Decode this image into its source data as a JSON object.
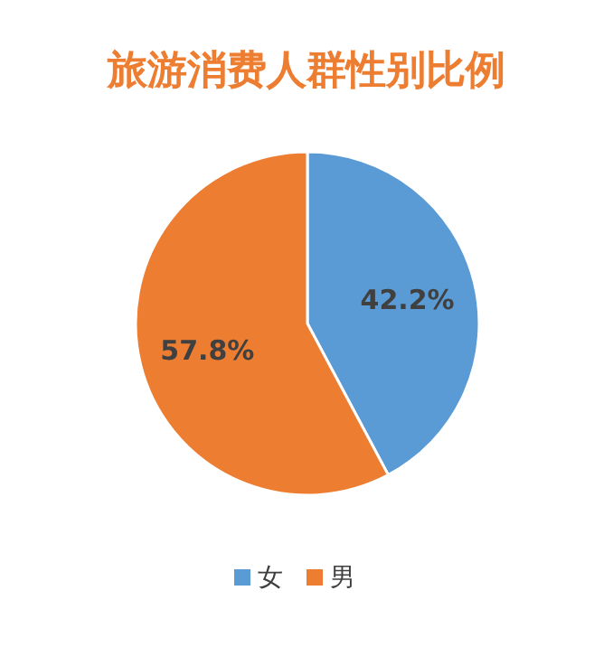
{
  "chart_data": {
    "type": "pie",
    "title": "旅游消费人群性别比例",
    "categories": [
      "女",
      "男"
    ],
    "values": [
      42.2,
      57.8
    ],
    "value_labels": [
      "42.2%",
      "57.8%"
    ],
    "colors": [
      "#5b9bd5",
      "#ed7d31"
    ],
    "legend": "bottom"
  }
}
